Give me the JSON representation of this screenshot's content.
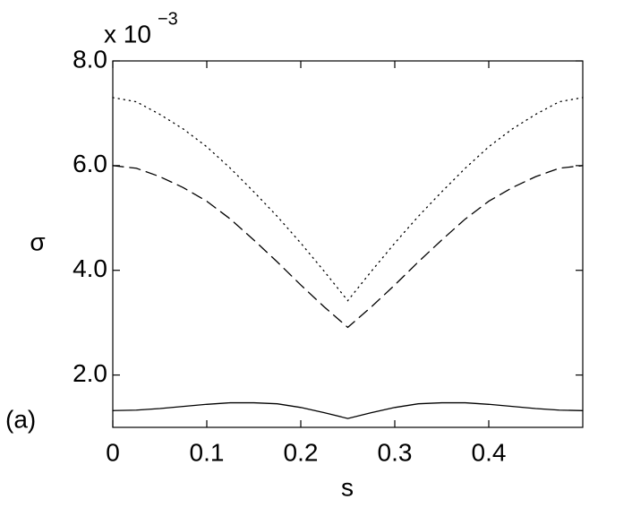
{
  "chart_data": {
    "type": "line",
    "y_label": "σ",
    "x_label": "s",
    "annotation": "(a)",
    "y_multiplier": {
      "base": "x 10",
      "exponent": "−3"
    },
    "x": [
      0,
      0.025,
      0.05,
      0.075,
      0.1,
      0.125,
      0.15,
      0.175,
      0.2,
      0.225,
      0.25,
      0.275,
      0.3,
      0.325,
      0.35,
      0.375,
      0.4,
      0.425,
      0.45,
      0.475,
      0.5
    ],
    "series": [
      {
        "color": "#000000",
        "style": "dotted",
        "values": [
          7.3,
          7.22,
          6.98,
          6.7,
          6.36,
          5.95,
          5.5,
          5.03,
          4.52,
          3.98,
          3.42,
          3.98,
          4.52,
          5.03,
          5.5,
          5.95,
          6.36,
          6.7,
          6.98,
          7.22,
          7.3
        ]
      },
      {
        "color": "#000000",
        "style": "dashed",
        "values": [
          6.0,
          5.95,
          5.79,
          5.58,
          5.32,
          4.98,
          4.58,
          4.16,
          3.72,
          3.3,
          2.91,
          3.3,
          3.72,
          4.16,
          4.58,
          4.98,
          5.32,
          5.58,
          5.79,
          5.95,
          6.0
        ]
      },
      {
        "color": "#000000",
        "style": "solid",
        "values": [
          1.32,
          1.33,
          1.36,
          1.4,
          1.44,
          1.47,
          1.47,
          1.45,
          1.38,
          1.28,
          1.17,
          1.28,
          1.38,
          1.45,
          1.47,
          1.47,
          1.44,
          1.4,
          1.36,
          1.33,
          1.32
        ]
      }
    ],
    "xlim": [
      0,
      0.5
    ],
    "xticks": [
      0,
      0.1,
      0.2,
      0.3,
      0.4
    ],
    "ylim": [
      1.0,
      8.0
    ],
    "yticks": [
      {
        "value": 2,
        "label": "2.0"
      },
      {
        "value": 4,
        "label": "4.0"
      },
      {
        "value": 6,
        "label": "6.0"
      },
      {
        "value": 8,
        "label": "8.0"
      }
    ],
    "grid": false
  }
}
